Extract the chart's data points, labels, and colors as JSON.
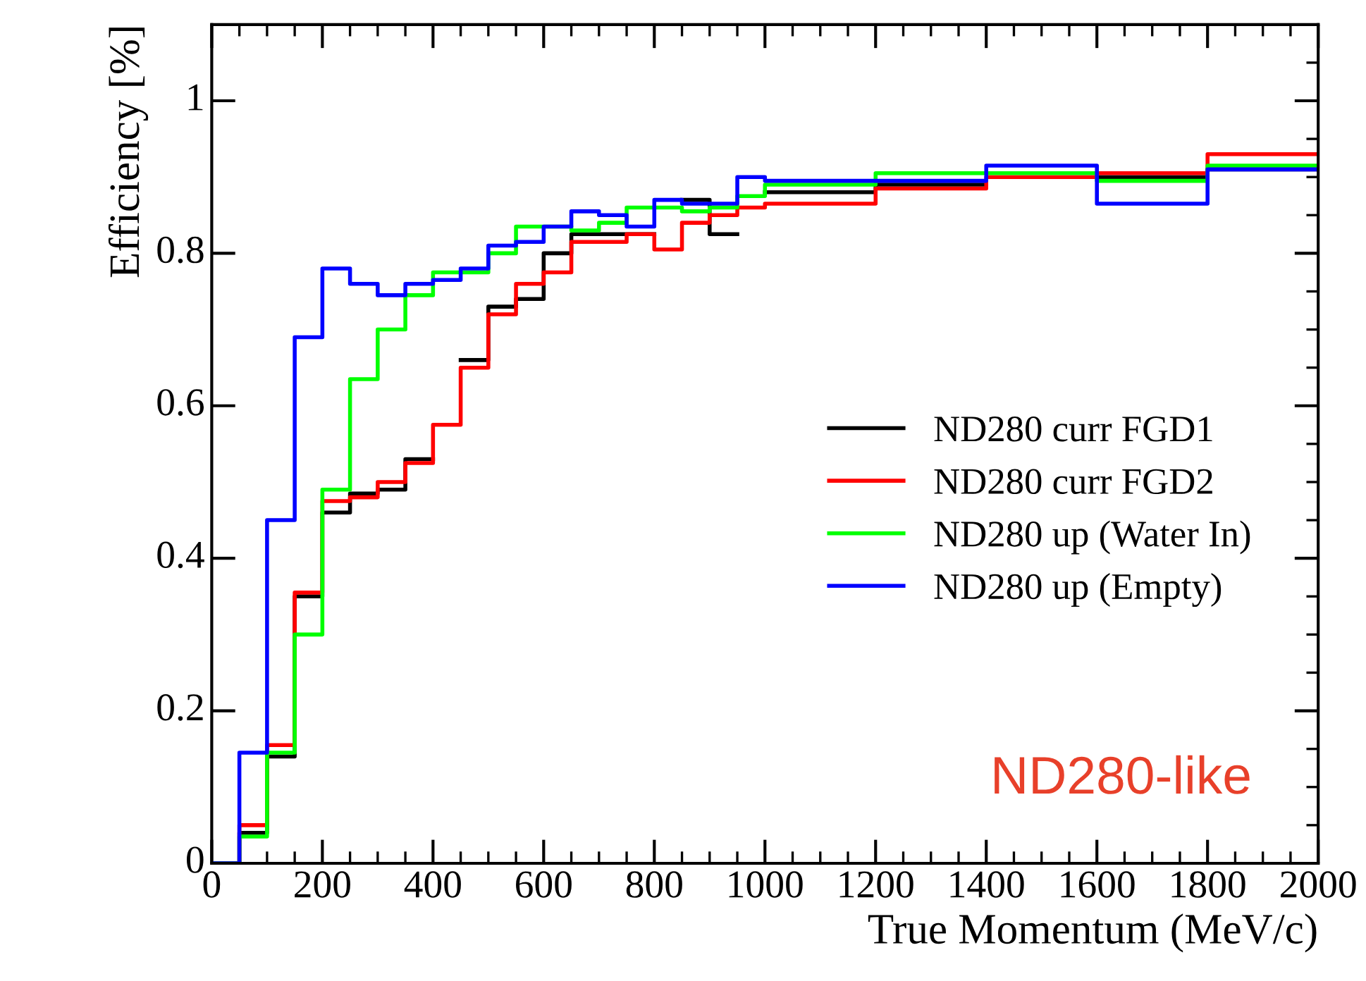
{
  "chart_data": {
    "type": "step",
    "xlabel": "True Momentum (MeV/c)",
    "ylabel": "Efficiency [%]",
    "x": [
      0,
      50,
      100,
      150,
      200,
      250,
      300,
      350,
      400,
      450,
      500,
      550,
      600,
      650,
      700,
      750,
      800,
      850,
      900,
      950,
      1000,
      1200,
      1400,
      1600,
      1800,
      2000
    ],
    "series": [
      {
        "name": "ND280 curr FGD1",
        "color": "#000000",
        "values": [
          0,
          0.04,
          0.14,
          0.35,
          0.46,
          0.485,
          0.49,
          0.53,
          null,
          0.66,
          0.73,
          0.74,
          0.8,
          0.825,
          0.825,
          0.825,
          null,
          0.87,
          0.825,
          null,
          0.88,
          0.89,
          null,
          0.9,
          0.91,
          0.91
        ]
      },
      {
        "name": "ND280 curr FGD2",
        "color": "#ff0000",
        "values": [
          0,
          0.05,
          0.155,
          0.355,
          0.475,
          0.48,
          0.5,
          0.525,
          0.575,
          0.65,
          0.72,
          0.76,
          0.775,
          0.815,
          0.815,
          0.825,
          0.805,
          0.84,
          0.85,
          0.86,
          0.865,
          0.885,
          0.9,
          0.905,
          0.93,
          0.93
        ]
      },
      {
        "name": "ND280 up (Water In)",
        "color": "#00ff00",
        "values": [
          0,
          0.035,
          0.145,
          0.3,
          0.49,
          0.635,
          0.7,
          0.745,
          0.775,
          0.775,
          0.8,
          0.835,
          0.835,
          0.83,
          0.84,
          0.86,
          0.86,
          0.855,
          0.86,
          0.875,
          0.89,
          0.905,
          0.905,
          0.895,
          0.915,
          0.915
        ]
      },
      {
        "name": "ND280 up (Empty)",
        "color": "#0000ff",
        "values": [
          0,
          0.145,
          0.45,
          0.69,
          0.78,
          0.76,
          0.745,
          0.76,
          0.765,
          0.78,
          0.81,
          0.815,
          0.835,
          0.855,
          0.85,
          0.835,
          0.87,
          0.865,
          0.865,
          0.9,
          0.895,
          0.895,
          0.915,
          0.865,
          0.91,
          0.91
        ]
      }
    ],
    "annotations": [
      "ND280-like"
    ],
    "xlim": [
      0,
      2000
    ],
    "xticks": [
      0,
      200,
      400,
      600,
      800,
      1000,
      1200,
      1400,
      1600,
      1800,
      2000
    ],
    "ylim": [
      0,
      1.1
    ],
    "yticks": [
      0,
      0.2,
      0.4,
      0.6,
      0.8,
      1
    ],
    "legend": "right",
    "grid": false,
    "line_style": "solid"
  }
}
